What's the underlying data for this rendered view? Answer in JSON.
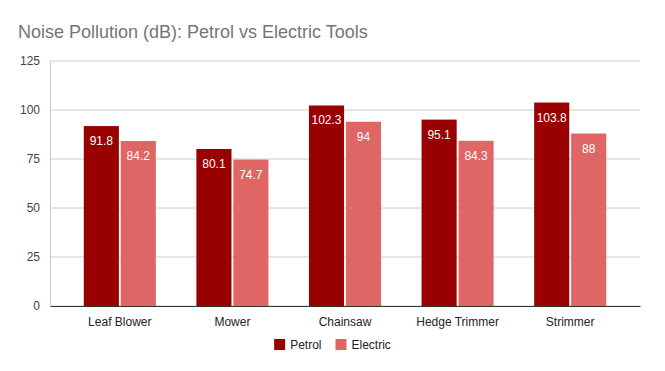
{
  "chart_data": {
    "type": "bar",
    "title": "Noise Pollution (dB): Petrol vs Electric Tools",
    "categories": [
      "Leaf Blower",
      "Mower",
      "Chainsaw",
      "Hedge Trimmer",
      "Strimmer"
    ],
    "series": [
      {
        "name": "Petrol",
        "color": "#990000",
        "values": [
          91.8,
          80.1,
          102.3,
          95.1,
          103.8
        ]
      },
      {
        "name": "Electric",
        "color": "#e06666",
        "values": [
          84.2,
          74.7,
          94,
          84.3,
          88
        ]
      }
    ],
    "ylim": [
      0,
      125
    ],
    "yticks": [
      0,
      25,
      50,
      75,
      100,
      125
    ],
    "grid": true,
    "legend": "bottom",
    "data_labels": true
  }
}
